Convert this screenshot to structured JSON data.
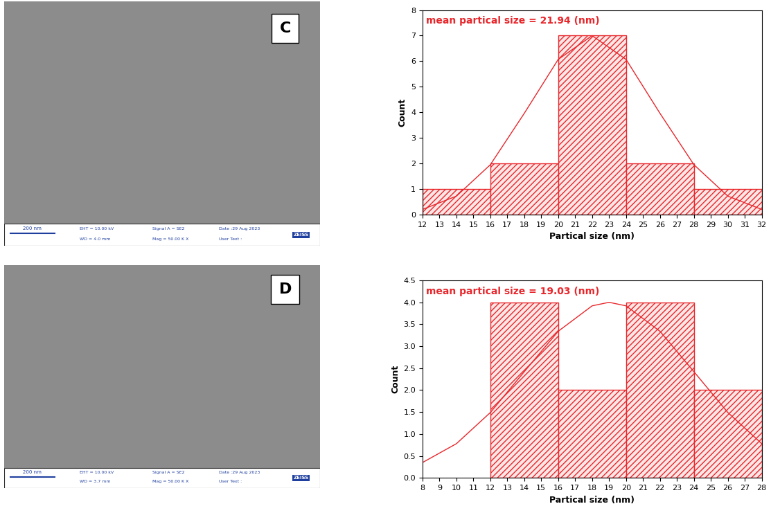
{
  "chart_data": [
    {
      "type": "histogram",
      "title": "mean partical size = 21.94 (nm)",
      "x_label": "Partical size (nm)",
      "y_label": "Count",
      "bins": [
        12,
        16,
        20,
        24,
        28,
        32
      ],
      "counts": [
        1,
        2,
        7,
        2,
        1
      ],
      "color": "#e8262b",
      "fit": {
        "x": [
          12,
          14,
          16,
          18,
          20,
          22,
          24,
          26,
          28,
          30,
          32
        ],
        "values": [
          0.2,
          0.72,
          1.95,
          3.96,
          6.07,
          7,
          6.07,
          3.96,
          1.95,
          0.72,
          0.2
        ]
      },
      "xlim": [
        12,
        32
      ],
      "xticks": [
        12,
        13,
        14,
        15,
        16,
        17,
        18,
        19,
        20,
        21,
        22,
        23,
        24,
        25,
        26,
        27,
        28,
        29,
        30,
        31,
        32
      ],
      "ylim": [
        0,
        8
      ],
      "yticks": [
        0,
        1,
        2,
        3,
        4,
        5,
        6,
        7,
        8
      ]
    },
    {
      "type": "histogram",
      "title": "mean partical size = 19.03 (nm)",
      "x_label": "Partical size (nm)",
      "y_label": "Count",
      "bins": [
        12,
        16,
        20,
        24,
        28
      ],
      "counts": [
        4,
        2,
        4,
        2
      ],
      "color": "#e8262b",
      "fit": {
        "x": [
          8,
          10,
          12,
          14,
          16,
          18,
          19,
          20,
          22,
          24,
          26,
          28
        ],
        "values": [
          0.35,
          0.78,
          1.49,
          2.42,
          3.34,
          3.92,
          4,
          3.92,
          3.34,
          2.42,
          1.49,
          0.78
        ]
      },
      "xlim": [
        8,
        28
      ],
      "xticks": [
        8,
        9,
        10,
        11,
        12,
        13,
        14,
        15,
        16,
        17,
        18,
        19,
        20,
        21,
        22,
        23,
        24,
        25,
        26,
        27,
        28
      ],
      "ylim": [
        0,
        4.5
      ],
      "yticks": [
        {
          "value": 0,
          "label": "0.0"
        },
        0.5,
        {
          "value": 1,
          "label": "1.0"
        },
        1.5,
        {
          "value": 2,
          "label": "2.0"
        },
        2.5,
        {
          "value": 3,
          "label": "3.0"
        },
        3.5,
        {
          "value": 4,
          "label": "4.0"
        },
        4.5
      ]
    }
  ],
  "images": [
    {
      "label": "C",
      "scale_bar": "200 nm",
      "logo": "ZEISS",
      "info": [
        "EHT = 10.00 kV",
        "WD = 4.0 mm",
        "Signal A = SE2",
        "Mag = 50.00 K X",
        "Date :29 Aug 2023",
        "User Text :"
      ]
    },
    {
      "label": "D",
      "scale_bar": "200 nm",
      "logo": "ZEISS",
      "info": [
        "EHT = 10.00 kV",
        "WD = 3.7 mm",
        "Signal A = SE2",
        "Mag = 50.00 K X",
        "Date :29 Aug 2023",
        "User Text :"
      ]
    }
  ]
}
